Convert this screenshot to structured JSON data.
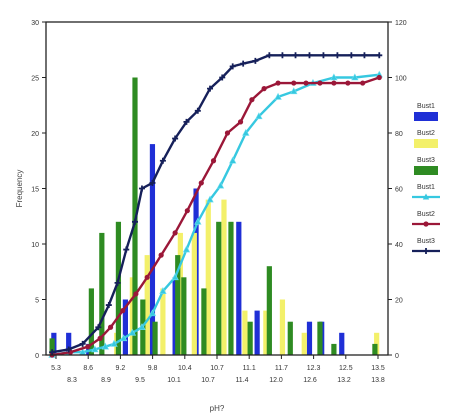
{
  "chart_data": {
    "type": "bar",
    "xlabel": "pH?",
    "ylabel": "Frequency",
    "ylim": [
      0,
      30
    ],
    "y2lim": [
      0,
      120
    ],
    "yticks": [
      "0",
      "5",
      "10",
      "15",
      "20",
      "25",
      "30"
    ],
    "y2ticks": [
      "0",
      "20",
      "40",
      "60",
      "80",
      "100",
      "120"
    ],
    "xticks_top": [
      "5.3",
      "8.6",
      "9.2",
      "9.8",
      "10.4",
      "10.7",
      "11.1",
      "11.7",
      "12.3",
      "12.5",
      "13.5"
    ],
    "xticks_bottom": [
      "8.3",
      "8.9",
      "9.5",
      "10.1",
      "10.7",
      "11.4",
      "12.0",
      "12.6",
      "13.2",
      "13.8"
    ],
    "legend_placement": "right",
    "series": [
      {
        "name": "Bust1",
        "kind": "bar",
        "color": "#1f2fd6",
        "points": [
          [
            0.3,
            2
          ],
          [
            2.0,
            2
          ],
          [
            4.3,
            1
          ],
          [
            8.5,
            5
          ],
          [
            11.6,
            19
          ],
          [
            14.2,
            7
          ],
          [
            16.6,
            15
          ],
          [
            21.5,
            12
          ],
          [
            23.6,
            4
          ],
          [
            29.6,
            3
          ],
          [
            31.0,
            3
          ],
          [
            33.3,
            2
          ]
        ]
      },
      {
        "name": "Bust2",
        "kind": "bar",
        "color": "#f3f06a",
        "points": [
          [
            7.5,
            2
          ],
          [
            9.3,
            7
          ],
          [
            11.0,
            9
          ],
          [
            12.8,
            6
          ],
          [
            14.8,
            11
          ],
          [
            16.4,
            11
          ],
          [
            18.0,
            14
          ],
          [
            19.8,
            14
          ],
          [
            22.2,
            4
          ],
          [
            24.6,
            4
          ],
          [
            26.5,
            5
          ],
          [
            29.0,
            2
          ],
          [
            37.3,
            2
          ]
        ]
      },
      {
        "name": "Bust3",
        "kind": "bar",
        "color": "#2e8b22",
        "points": [
          [
            0.1,
            1.5
          ],
          [
            4.6,
            6
          ],
          [
            5.8,
            11
          ],
          [
            7.7,
            12
          ],
          [
            9.6,
            25
          ],
          [
            10.5,
            5
          ],
          [
            11.9,
            3
          ],
          [
            14.5,
            9
          ],
          [
            15.2,
            7
          ],
          [
            17.5,
            6
          ],
          [
            19.2,
            12
          ],
          [
            20.6,
            12
          ],
          [
            22.8,
            3
          ],
          [
            25.0,
            8
          ],
          [
            27.4,
            3
          ],
          [
            30.8,
            3
          ],
          [
            32.4,
            1
          ],
          [
            37.1,
            1
          ]
        ]
      },
      {
        "name": "Bust1",
        "kind": "line",
        "color": "#36c8e0",
        "marker": "triangle",
        "points": [
          [
            0.1,
            0
          ],
          [
            2.0,
            1
          ],
          [
            3.6,
            1
          ],
          [
            5.0,
            2
          ],
          [
            6.2,
            3
          ],
          [
            7.2,
            4
          ],
          [
            8.3,
            6
          ],
          [
            9.3,
            8
          ],
          [
            10.4,
            10
          ],
          [
            11.6,
            15
          ],
          [
            12.8,
            23
          ],
          [
            14.2,
            28
          ],
          [
            15.5,
            38
          ],
          [
            16.8,
            48
          ],
          [
            18.2,
            56
          ],
          [
            19.4,
            61
          ],
          [
            20.8,
            70
          ],
          [
            22.3,
            80
          ],
          [
            23.8,
            86
          ],
          [
            26.0,
            93
          ],
          [
            27.8,
            95
          ],
          [
            30.0,
            98
          ],
          [
            32.4,
            100
          ],
          [
            34.8,
            100
          ],
          [
            37.6,
            101
          ]
        ]
      },
      {
        "name": "Bust2",
        "kind": "line",
        "color": "#9b1738",
        "marker": "circle",
        "points": [
          [
            0.1,
            0
          ],
          [
            2.2,
            1
          ],
          [
            4.2,
            3
          ],
          [
            5.6,
            6
          ],
          [
            6.8,
            10
          ],
          [
            8.2,
            16
          ],
          [
            9.7,
            22
          ],
          [
            11.0,
            28
          ],
          [
            12.6,
            36
          ],
          [
            14.2,
            44
          ],
          [
            15.6,
            52
          ],
          [
            17.2,
            62
          ],
          [
            18.6,
            70
          ],
          [
            20.2,
            80
          ],
          [
            21.7,
            84
          ],
          [
            23.0,
            92
          ],
          [
            24.4,
            96
          ],
          [
            26.0,
            98
          ],
          [
            27.8,
            98
          ],
          [
            29.2,
            98
          ],
          [
            30.8,
            98
          ],
          [
            32.4,
            98
          ],
          [
            34.0,
            98
          ],
          [
            35.7,
            98
          ],
          [
            37.6,
            100
          ]
        ]
      },
      {
        "name": "Bust3",
        "kind": "line",
        "color": "#16205a",
        "marker": "plus",
        "points": [
          [
            0.1,
            1
          ],
          [
            2.0,
            2
          ],
          [
            3.6,
            4
          ],
          [
            5.4,
            10
          ],
          [
            6.6,
            18
          ],
          [
            7.6,
            26
          ],
          [
            8.6,
            38
          ],
          [
            9.6,
            48
          ],
          [
            10.4,
            60
          ],
          [
            11.6,
            62
          ],
          [
            12.8,
            70
          ],
          [
            14.2,
            78
          ],
          [
            15.5,
            84
          ],
          [
            16.8,
            88
          ],
          [
            18.2,
            96
          ],
          [
            19.6,
            100
          ],
          [
            20.8,
            104
          ],
          [
            22.0,
            105
          ],
          [
            23.4,
            106
          ],
          [
            25.0,
            108
          ],
          [
            26.5,
            108
          ],
          [
            28.0,
            108
          ],
          [
            29.6,
            108
          ],
          [
            31.2,
            108
          ],
          [
            32.8,
            108
          ],
          [
            34.4,
            108
          ],
          [
            35.9,
            108
          ],
          [
            37.6,
            108
          ]
        ]
      }
    ]
  }
}
